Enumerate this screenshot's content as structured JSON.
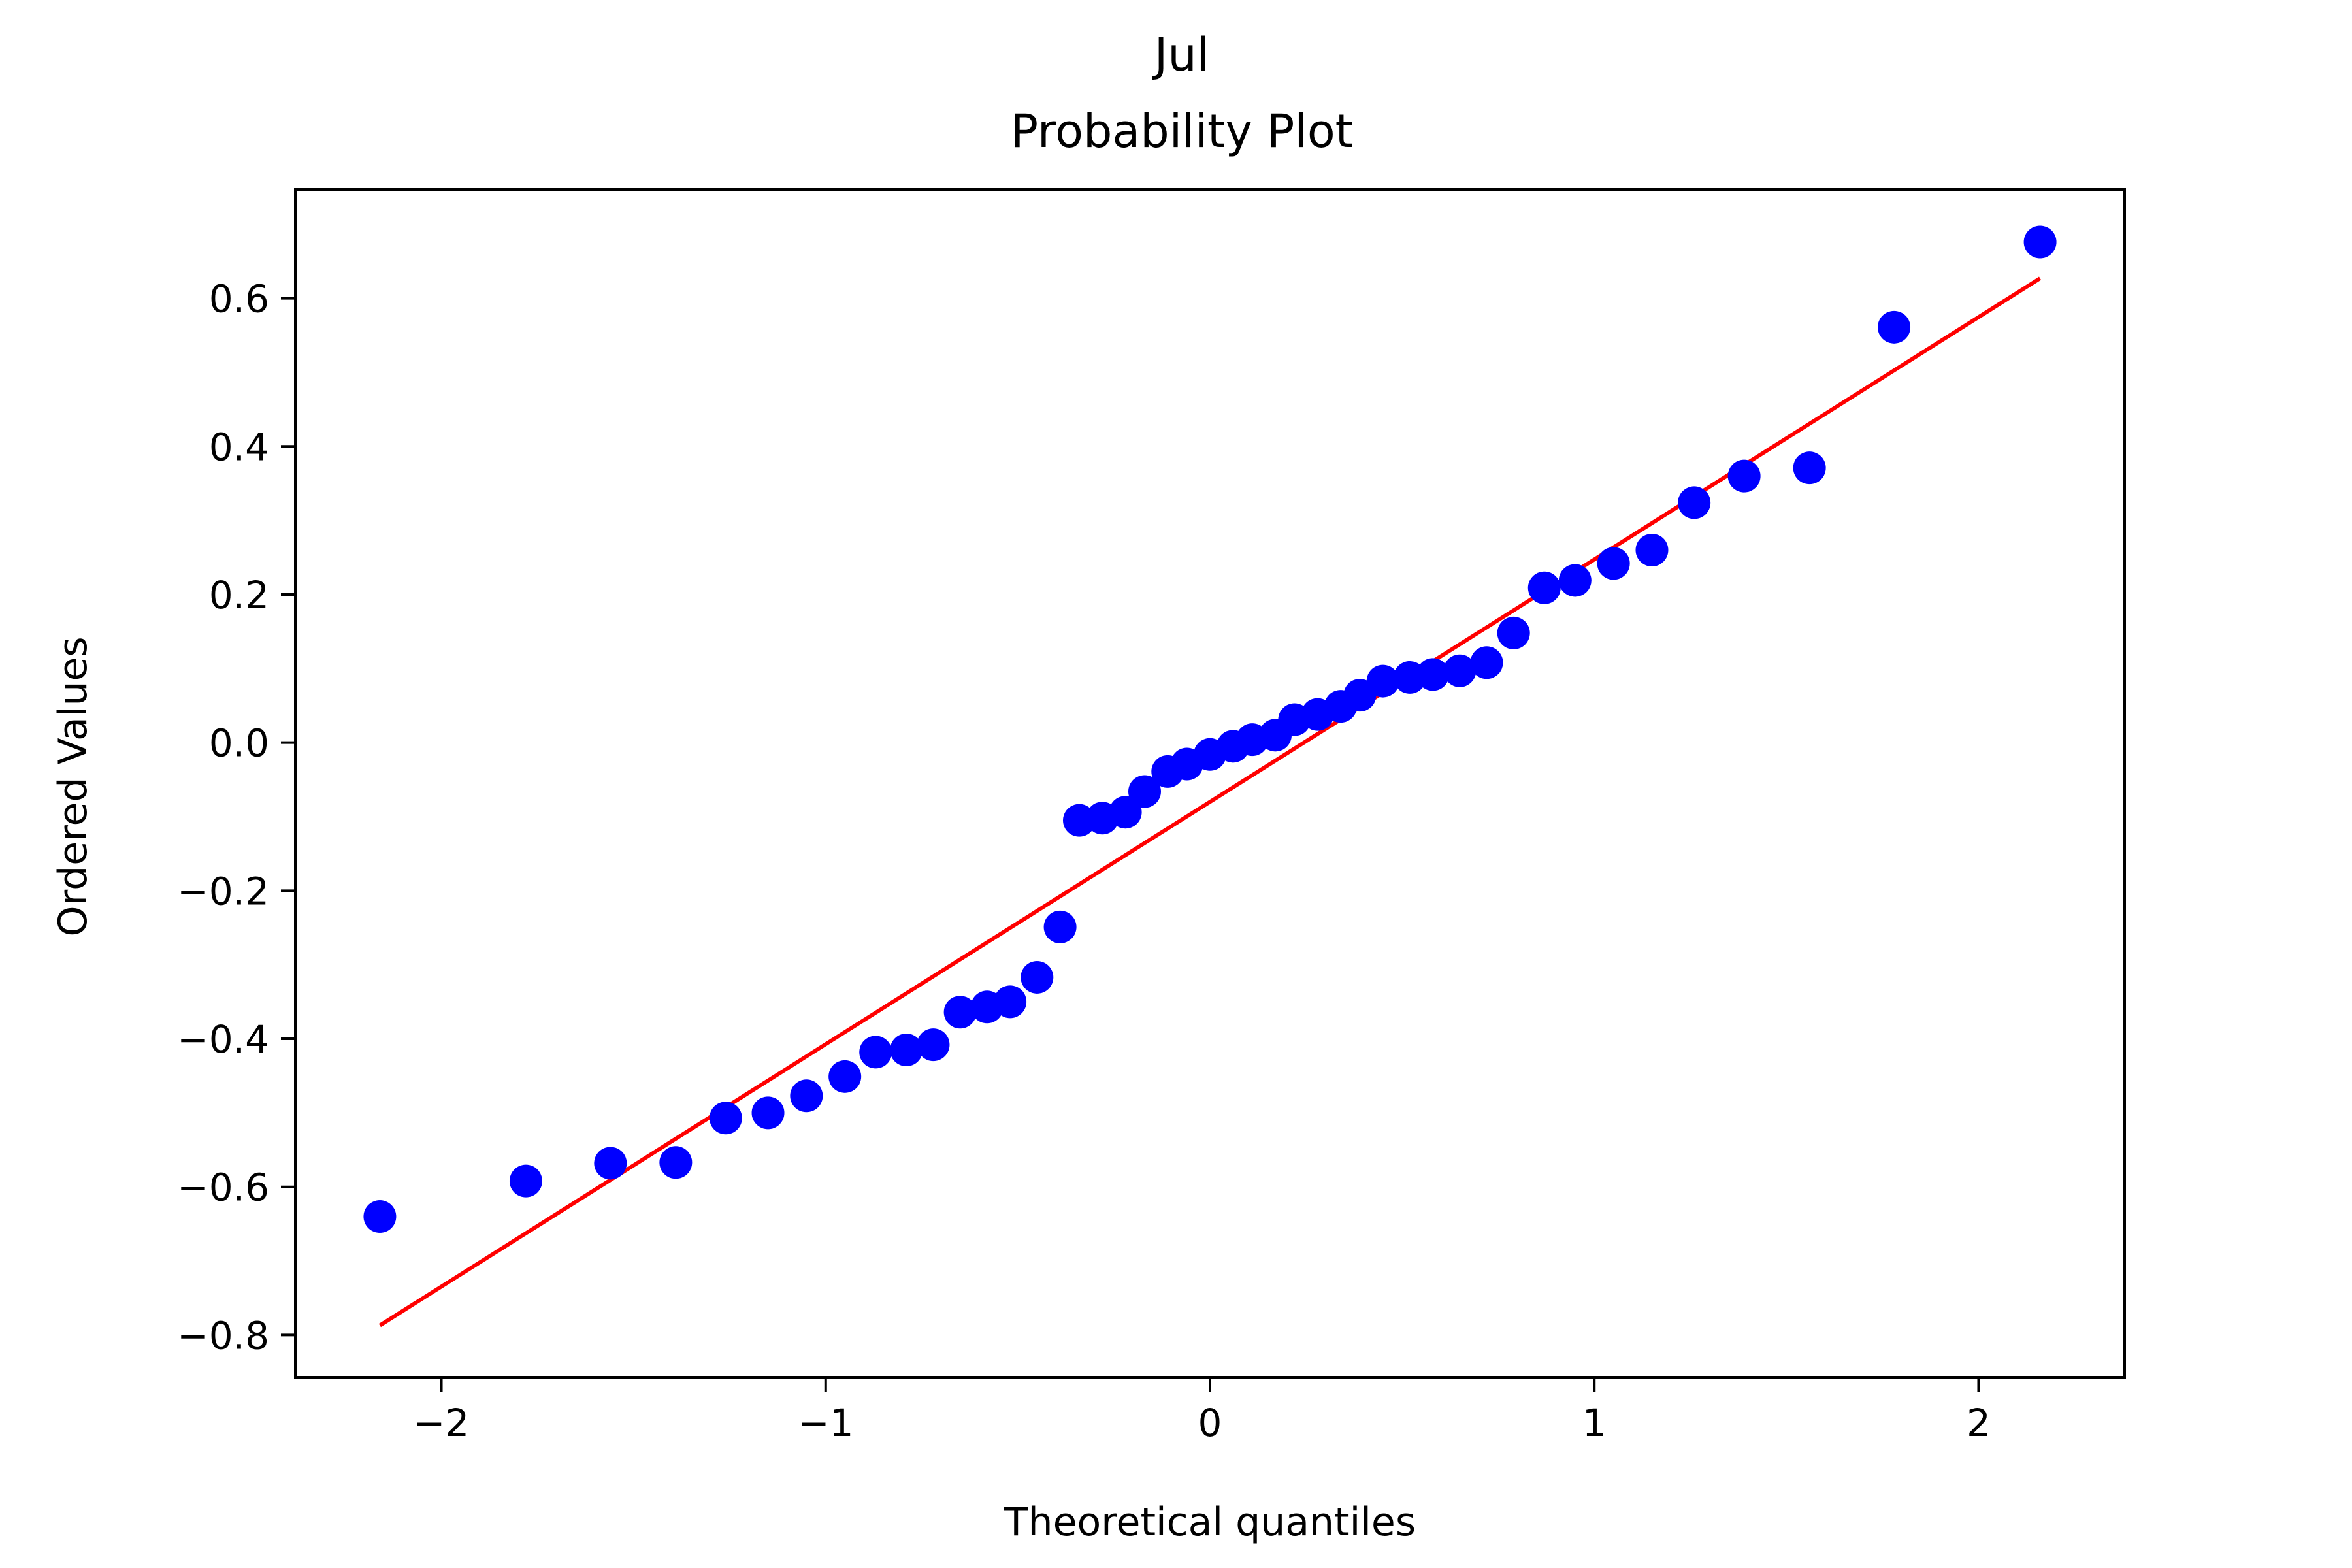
{
  "chart_data": {
    "type": "scatter",
    "title": "Jul",
    "subtitle": "Probability Plot",
    "xlabel": "Theoretical quantiles",
    "ylabel": "Ordered Values",
    "xlim": [
      -2.38,
      2.38
    ],
    "ylim": [
      -0.857,
      0.747
    ],
    "grid": false,
    "x_ticks": [
      -2,
      -1,
      0,
      1,
      2
    ],
    "x_tick_labels": [
      "−2",
      "−1",
      "0",
      "1",
      "2"
    ],
    "y_ticks": [
      -0.8,
      -0.6,
      -0.4,
      -0.2,
      0.0,
      0.2,
      0.4,
      0.6
    ],
    "y_tick_labels": [
      "−0.8",
      "−0.6",
      "−0.4",
      "−0.2",
      "0.0",
      "0.2",
      "0.4",
      "0.6"
    ],
    "points": {
      "color": "#0000ff",
      "x": [
        -2.16,
        -1.78,
        -1.56,
        -1.39,
        -1.26,
        -1.15,
        -1.05,
        -0.95,
        -0.87,
        -0.79,
        -0.72,
        -0.65,
        -0.58,
        -0.52,
        -0.45,
        -0.39,
        -0.34,
        -0.28,
        -0.22,
        -0.17,
        -0.11,
        -0.06,
        0.0,
        0.06,
        0.11,
        0.17,
        0.22,
        0.28,
        0.34,
        0.39,
        0.45,
        0.52,
        0.58,
        0.65,
        0.72,
        0.79,
        0.87,
        0.95,
        1.05,
        1.15,
        1.26,
        1.39,
        1.56,
        1.78,
        2.16
      ],
      "y": [
        -0.64,
        -0.592,
        -0.568,
        -0.567,
        -0.507,
        -0.5,
        -0.477,
        -0.451,
        -0.418,
        -0.415,
        -0.408,
        -0.364,
        -0.357,
        -0.35,
        -0.317,
        -0.249,
        -0.105,
        -0.102,
        -0.094,
        -0.066,
        -0.039,
        -0.029,
        -0.016,
        -0.005,
        0.004,
        0.01,
        0.031,
        0.038,
        0.049,
        0.064,
        0.083,
        0.088,
        0.092,
        0.097,
        0.108,
        0.148,
        0.209,
        0.219,
        0.242,
        0.26,
        0.324,
        0.36,
        0.371,
        0.561,
        0.676
      ]
    },
    "fit_line": {
      "color": "#ff0000",
      "x": [
        -2.16,
        2.16
      ],
      "y": [
        -0.787,
        0.627
      ]
    }
  }
}
